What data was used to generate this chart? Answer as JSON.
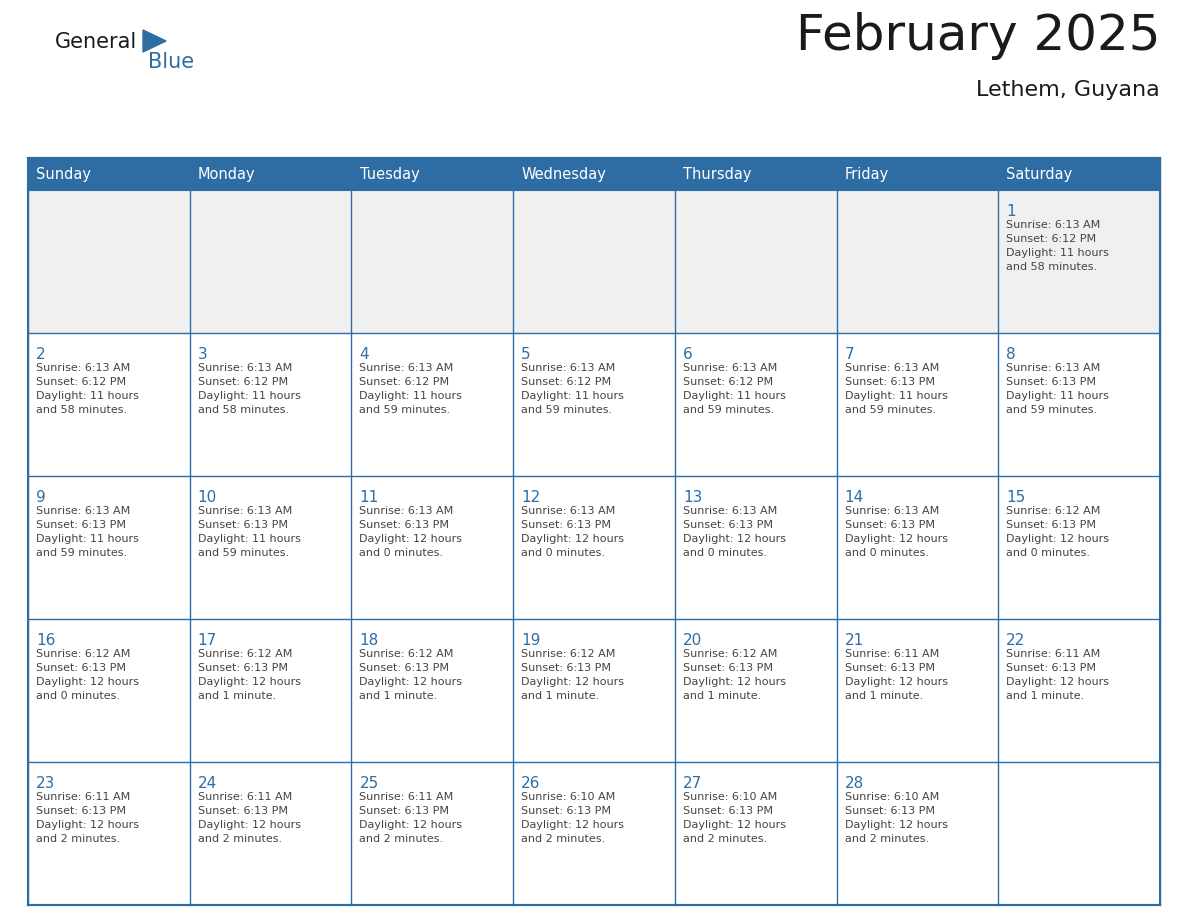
{
  "title": "February 2025",
  "subtitle": "Lethem, Guyana",
  "header_bg_color": "#2E6DA4",
  "header_text_color": "#FFFFFF",
  "cell_bg_color": "#FFFFFF",
  "cell_border_color": "#2E6DA4",
  "day_number_color": "#2E6DA4",
  "info_text_color": "#444444",
  "background_color": "#FFFFFF",
  "first_row_bg": "#F0F0F0",
  "days_of_week": [
    "Sunday",
    "Monday",
    "Tuesday",
    "Wednesday",
    "Thursday",
    "Friday",
    "Saturday"
  ],
  "calendar_data": [
    [
      {
        "day": "",
        "info": ""
      },
      {
        "day": "",
        "info": ""
      },
      {
        "day": "",
        "info": ""
      },
      {
        "day": "",
        "info": ""
      },
      {
        "day": "",
        "info": ""
      },
      {
        "day": "",
        "info": ""
      },
      {
        "day": "1",
        "info": "Sunrise: 6:13 AM\nSunset: 6:12 PM\nDaylight: 11 hours\nand 58 minutes."
      }
    ],
    [
      {
        "day": "2",
        "info": "Sunrise: 6:13 AM\nSunset: 6:12 PM\nDaylight: 11 hours\nand 58 minutes."
      },
      {
        "day": "3",
        "info": "Sunrise: 6:13 AM\nSunset: 6:12 PM\nDaylight: 11 hours\nand 58 minutes."
      },
      {
        "day": "4",
        "info": "Sunrise: 6:13 AM\nSunset: 6:12 PM\nDaylight: 11 hours\nand 59 minutes."
      },
      {
        "day": "5",
        "info": "Sunrise: 6:13 AM\nSunset: 6:12 PM\nDaylight: 11 hours\nand 59 minutes."
      },
      {
        "day": "6",
        "info": "Sunrise: 6:13 AM\nSunset: 6:12 PM\nDaylight: 11 hours\nand 59 minutes."
      },
      {
        "day": "7",
        "info": "Sunrise: 6:13 AM\nSunset: 6:13 PM\nDaylight: 11 hours\nand 59 minutes."
      },
      {
        "day": "8",
        "info": "Sunrise: 6:13 AM\nSunset: 6:13 PM\nDaylight: 11 hours\nand 59 minutes."
      }
    ],
    [
      {
        "day": "9",
        "info": "Sunrise: 6:13 AM\nSunset: 6:13 PM\nDaylight: 11 hours\nand 59 minutes."
      },
      {
        "day": "10",
        "info": "Sunrise: 6:13 AM\nSunset: 6:13 PM\nDaylight: 11 hours\nand 59 minutes."
      },
      {
        "day": "11",
        "info": "Sunrise: 6:13 AM\nSunset: 6:13 PM\nDaylight: 12 hours\nand 0 minutes."
      },
      {
        "day": "12",
        "info": "Sunrise: 6:13 AM\nSunset: 6:13 PM\nDaylight: 12 hours\nand 0 minutes."
      },
      {
        "day": "13",
        "info": "Sunrise: 6:13 AM\nSunset: 6:13 PM\nDaylight: 12 hours\nand 0 minutes."
      },
      {
        "day": "14",
        "info": "Sunrise: 6:13 AM\nSunset: 6:13 PM\nDaylight: 12 hours\nand 0 minutes."
      },
      {
        "day": "15",
        "info": "Sunrise: 6:12 AM\nSunset: 6:13 PM\nDaylight: 12 hours\nand 0 minutes."
      }
    ],
    [
      {
        "day": "16",
        "info": "Sunrise: 6:12 AM\nSunset: 6:13 PM\nDaylight: 12 hours\nand 0 minutes."
      },
      {
        "day": "17",
        "info": "Sunrise: 6:12 AM\nSunset: 6:13 PM\nDaylight: 12 hours\nand 1 minute."
      },
      {
        "day": "18",
        "info": "Sunrise: 6:12 AM\nSunset: 6:13 PM\nDaylight: 12 hours\nand 1 minute."
      },
      {
        "day": "19",
        "info": "Sunrise: 6:12 AM\nSunset: 6:13 PM\nDaylight: 12 hours\nand 1 minute."
      },
      {
        "day": "20",
        "info": "Sunrise: 6:12 AM\nSunset: 6:13 PM\nDaylight: 12 hours\nand 1 minute."
      },
      {
        "day": "21",
        "info": "Sunrise: 6:11 AM\nSunset: 6:13 PM\nDaylight: 12 hours\nand 1 minute."
      },
      {
        "day": "22",
        "info": "Sunrise: 6:11 AM\nSunset: 6:13 PM\nDaylight: 12 hours\nand 1 minute."
      }
    ],
    [
      {
        "day": "23",
        "info": "Sunrise: 6:11 AM\nSunset: 6:13 PM\nDaylight: 12 hours\nand 2 minutes."
      },
      {
        "day": "24",
        "info": "Sunrise: 6:11 AM\nSunset: 6:13 PM\nDaylight: 12 hours\nand 2 minutes."
      },
      {
        "day": "25",
        "info": "Sunrise: 6:11 AM\nSunset: 6:13 PM\nDaylight: 12 hours\nand 2 minutes."
      },
      {
        "day": "26",
        "info": "Sunrise: 6:10 AM\nSunset: 6:13 PM\nDaylight: 12 hours\nand 2 minutes."
      },
      {
        "day": "27",
        "info": "Sunrise: 6:10 AM\nSunset: 6:13 PM\nDaylight: 12 hours\nand 2 minutes."
      },
      {
        "day": "28",
        "info": "Sunrise: 6:10 AM\nSunset: 6:13 PM\nDaylight: 12 hours\nand 2 minutes."
      },
      {
        "day": "",
        "info": ""
      }
    ]
  ]
}
